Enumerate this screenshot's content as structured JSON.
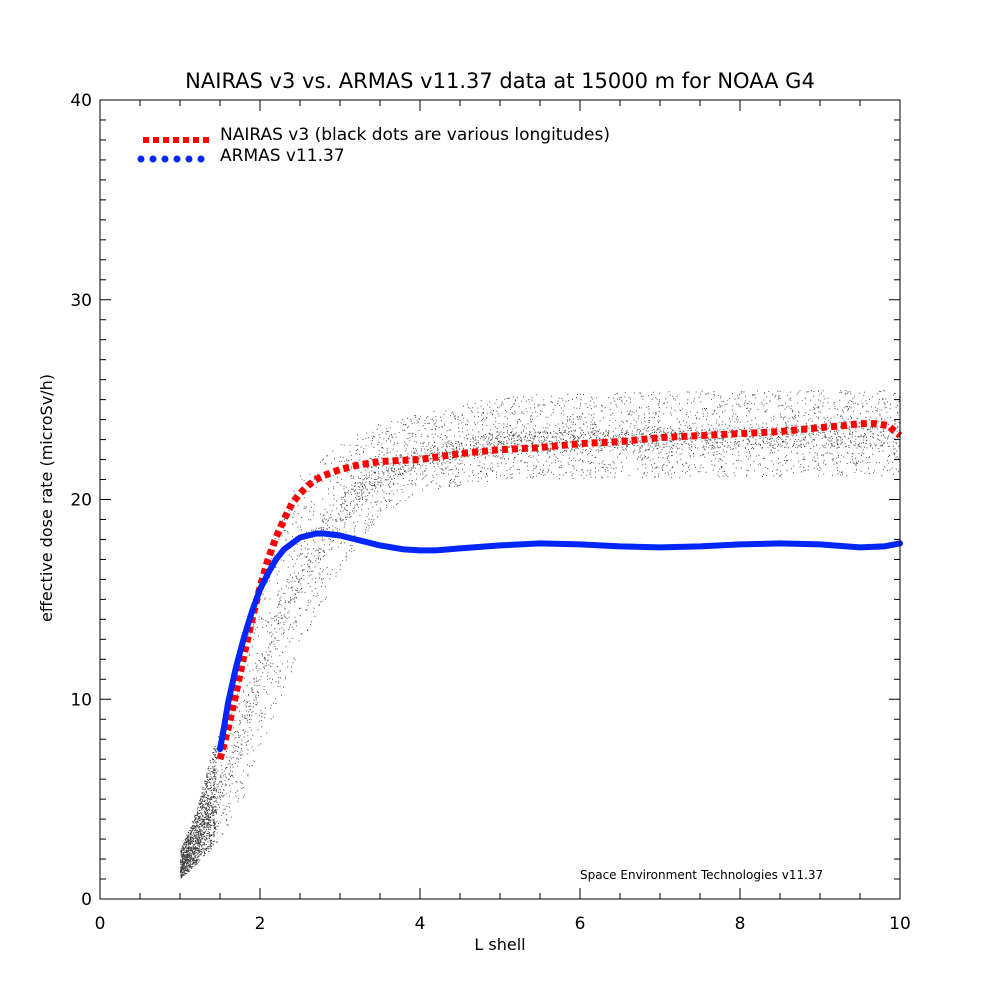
{
  "chart_data": {
    "type": "line",
    "title": "NAIRAS  v3 vs. ARMAS v11.37 data at 15000 m for NOAA G4",
    "xlabel": "L shell",
    "ylabel": "effective dose rate (microSv/h)",
    "xlim": [
      0,
      10
    ],
    "ylim": [
      0,
      40
    ],
    "x_ticks": [
      0,
      2,
      4,
      6,
      8,
      10
    ],
    "y_ticks": [
      0,
      10,
      20,
      30,
      40
    ],
    "x_tick_labels": [
      "0",
      "2",
      "4",
      "6",
      "8",
      "10"
    ],
    "y_tick_labels": [
      "0",
      "10",
      "20",
      "30",
      "40"
    ],
    "grid": false,
    "legend_position": "top-left",
    "annotation": "Space Environment Technologies v11.37",
    "series": [
      {
        "name": "NAIRAS v3 (black dots are various longitudes)",
        "color": "#ff0000",
        "style": "dotted",
        "x": [
          1.5,
          1.6,
          1.7,
          1.8,
          1.9,
          2.0,
          2.1,
          2.2,
          2.3,
          2.4,
          2.5,
          2.6,
          2.7,
          2.8,
          3.0,
          3.2,
          3.5,
          4.0,
          4.5,
          5.0,
          5.5,
          6.0,
          6.5,
          7.0,
          7.5,
          8.0,
          8.5,
          9.0,
          9.3,
          9.5,
          9.7,
          9.85,
          10.0
        ],
        "y": [
          7.0,
          8.5,
          10.3,
          12.2,
          14.0,
          15.6,
          17.0,
          18.1,
          19.0,
          19.8,
          20.3,
          20.7,
          21.0,
          21.2,
          21.5,
          21.7,
          21.9,
          22.0,
          22.3,
          22.5,
          22.6,
          22.8,
          22.9,
          23.1,
          23.2,
          23.3,
          23.4,
          23.6,
          23.7,
          23.8,
          23.8,
          23.7,
          23.2
        ]
      },
      {
        "name": "ARMAS v11.37",
        "color": "#0026ff",
        "style": "solid",
        "x": [
          1.5,
          1.55,
          1.6,
          1.7,
          1.8,
          1.9,
          2.0,
          2.1,
          2.2,
          2.3,
          2.4,
          2.5,
          2.6,
          2.7,
          2.8,
          2.9,
          3.0,
          3.2,
          3.5,
          3.8,
          4.0,
          4.2,
          4.5,
          5.0,
          5.5,
          6.0,
          6.5,
          7.0,
          7.5,
          8.0,
          8.5,
          9.0,
          9.5,
          9.8,
          10.0
        ],
        "y": [
          7.5,
          8.6,
          9.8,
          11.6,
          13.1,
          14.4,
          15.5,
          16.3,
          17.0,
          17.5,
          17.8,
          18.1,
          18.2,
          18.3,
          18.3,
          18.25,
          18.2,
          18.0,
          17.7,
          17.5,
          17.45,
          17.45,
          17.55,
          17.7,
          17.8,
          17.75,
          17.65,
          17.6,
          17.65,
          17.75,
          17.8,
          17.75,
          17.6,
          17.65,
          17.8
        ]
      }
    ],
    "scatter_cloud": {
      "color": "#000000",
      "description_of_envelope": {
        "lower": [
          [
            1.0,
            1.0
          ],
          [
            1.2,
            1.7
          ],
          [
            1.5,
            3.0
          ],
          [
            1.8,
            5.0
          ],
          [
            2.0,
            7.5
          ],
          [
            2.5,
            12.5
          ],
          [
            3.0,
            16.5
          ],
          [
            3.5,
            19.2
          ],
          [
            4.0,
            20.4
          ],
          [
            5.0,
            21.0
          ],
          [
            7.0,
            21.1
          ],
          [
            10.0,
            21.2
          ]
        ],
        "upper": [
          [
            1.0,
            2.0
          ],
          [
            1.2,
            4.0
          ],
          [
            1.4,
            7.0
          ],
          [
            1.6,
            10.0
          ],
          [
            1.8,
            13.0
          ],
          [
            2.0,
            15.8
          ],
          [
            2.2,
            18.3
          ],
          [
            2.5,
            21.3
          ],
          [
            3.0,
            22.8
          ],
          [
            3.5,
            23.8
          ],
          [
            4.0,
            24.3
          ],
          [
            5.0,
            25.2
          ],
          [
            7.0,
            25.4
          ],
          [
            10.0,
            25.5
          ]
        ]
      }
    }
  }
}
